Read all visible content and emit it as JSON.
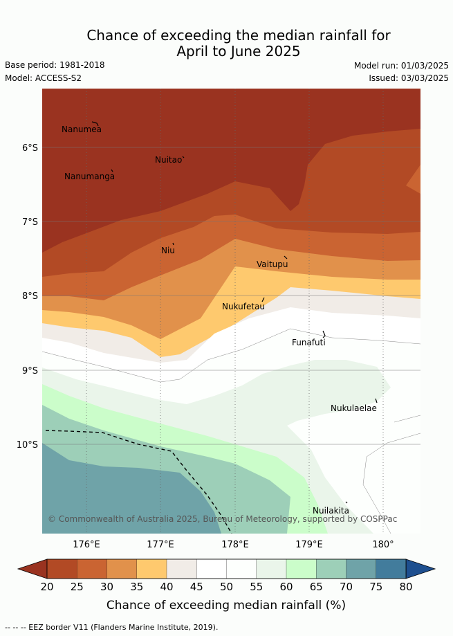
{
  "title_line1": "Chance of exceeding the median rainfall for",
  "title_line2": "April to June 2025",
  "base_period": "Base period: 1981-2018",
  "model": "Model: ACCESS-S2",
  "model_run": "Model run: 01/03/2025",
  "issued": "Issued: 03/03/2025",
  "credit": "© Commonwealth of Australia 2025, Bureau of Meteorology, supported by COSPPac",
  "footnote": "--  --  -- EEZ border V11 (Flanders Marine Institute, 2019).",
  "colorbar_label": "Chance of exceeding median rainfall (%)",
  "colorbar_ticks": [
    "20",
    "25",
    "30",
    "35",
    "40",
    "45",
    "50",
    "55",
    "60",
    "65",
    "70",
    "75",
    "80"
  ],
  "colorbar_colors": [
    "#9a3320",
    "#b24a25",
    "#ca6432",
    "#e1914b",
    "#fec96e",
    "#f1ece7",
    "#ffffff",
    "#fdfffd",
    "#eaf5ea",
    "#cbfdca",
    "#9dcfb8",
    "#6fa3a8",
    "#427c9c",
    "#1e4f8f"
  ],
  "lat_labels": [
    "6°S",
    "7°S",
    "8°S",
    "9°S",
    "10°S"
  ],
  "lon_labels": [
    "176°E",
    "177°E",
    "178°E",
    "179°E",
    "180°"
  ],
  "islands": [
    "Nanumea",
    "Nuitao",
    "Nanumanga",
    "Niu",
    "Vaitupu",
    "Nukufetau",
    "Funafuti",
    "Nukulaelae",
    "Nuilakita"
  ]
}
